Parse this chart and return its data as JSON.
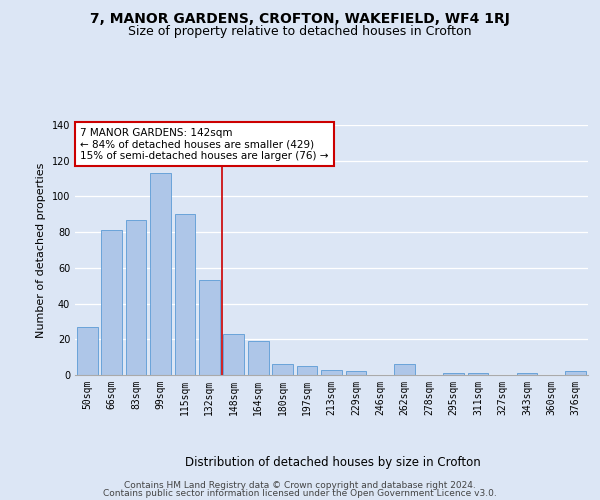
{
  "title1": "7, MANOR GARDENS, CROFTON, WAKEFIELD, WF4 1RJ",
  "title2": "Size of property relative to detached houses in Crofton",
  "xlabel": "Distribution of detached houses by size in Crofton",
  "ylabel": "Number of detached properties",
  "categories": [
    "50sqm",
    "66sqm",
    "83sqm",
    "99sqm",
    "115sqm",
    "132sqm",
    "148sqm",
    "164sqm",
    "180sqm",
    "197sqm",
    "213sqm",
    "229sqm",
    "246sqm",
    "262sqm",
    "278sqm",
    "295sqm",
    "311sqm",
    "327sqm",
    "343sqm",
    "360sqm",
    "376sqm"
  ],
  "values": [
    27,
    81,
    87,
    113,
    90,
    53,
    23,
    19,
    6,
    5,
    3,
    2,
    0,
    6,
    0,
    1,
    1,
    0,
    1,
    0,
    2
  ],
  "bar_color": "#aec6e8",
  "bar_edge_color": "#5b9bd5",
  "background_color": "#dce6f5",
  "grid_color": "#ffffff",
  "vline_x": 5.5,
  "vline_color": "#cc0000",
  "annotation_box_text": "7 MANOR GARDENS: 142sqm\n← 84% of detached houses are smaller (429)\n15% of semi-detached houses are larger (76) →",
  "annotation_box_color": "#cc0000",
  "ylim": [
    0,
    140
  ],
  "yticks": [
    0,
    20,
    40,
    60,
    80,
    100,
    120,
    140
  ],
  "footer1": "Contains HM Land Registry data © Crown copyright and database right 2024.",
  "footer2": "Contains public sector information licensed under the Open Government Licence v3.0.",
  "title1_fontsize": 10,
  "title2_fontsize": 9,
  "xlabel_fontsize": 8.5,
  "ylabel_fontsize": 8,
  "tick_fontsize": 7,
  "footer_fontsize": 6.5,
  "annotation_fontsize": 7.5
}
